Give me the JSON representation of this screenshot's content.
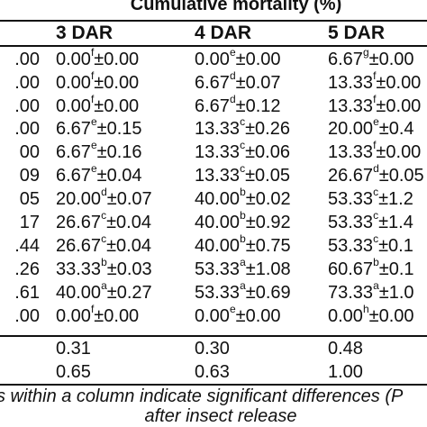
{
  "table": {
    "title": "Cumulative mortality (%)",
    "columns": [
      "3 DAR",
      "4 DAR",
      "5 DAR"
    ],
    "first_column_partial": [
      ".00",
      ".00",
      ".00",
      ".00",
      "00",
      "09",
      "05",
      "17",
      ".44",
      ".26",
      ".61",
      ".00",
      "",
      ""
    ],
    "rows": [
      [
        {
          "v": "0.00",
          "s": "f",
          "e": "±0.00"
        },
        {
          "v": "0.00",
          "s": "e",
          "e": "±0.00"
        },
        {
          "v": "6.67",
          "s": "g",
          "e": "±0.00"
        }
      ],
      [
        {
          "v": "0.00",
          "s": "f",
          "e": "±0.00"
        },
        {
          "v": "6.67",
          "s": "d",
          "e": "±0.07"
        },
        {
          "v": "13.33",
          "s": "f",
          "e": "±0.00"
        }
      ],
      [
        {
          "v": "0.00",
          "s": "f",
          "e": "±0.00"
        },
        {
          "v": "6.67",
          "s": "d",
          "e": "±0.12"
        },
        {
          "v": "13.33",
          "s": "f",
          "e": "±0.00"
        }
      ],
      [
        {
          "v": "6.67",
          "s": "e",
          "e": "±0.15"
        },
        {
          "v": "13.33",
          "s": "c",
          "e": "±0.26"
        },
        {
          "v": "20.00",
          "s": "e",
          "e": "±0.4"
        }
      ],
      [
        {
          "v": "6.67",
          "s": "e",
          "e": "±0.16"
        },
        {
          "v": "13.33",
          "s": "c",
          "e": "±0.06"
        },
        {
          "v": "13.33",
          "s": "f",
          "e": "±0.00"
        }
      ],
      [
        {
          "v": "6.67",
          "s": "e",
          "e": "±0.04"
        },
        {
          "v": "13.33",
          "s": "c",
          "e": "±0.05"
        },
        {
          "v": "26.67",
          "s": "d",
          "e": "±0.05"
        }
      ],
      [
        {
          "v": "20.00",
          "s": "d",
          "e": "±0.07"
        },
        {
          "v": "40.00",
          "s": "b",
          "e": "±0.02"
        },
        {
          "v": "53.33",
          "s": "c",
          "e": "±1.2"
        }
      ],
      [
        {
          "v": "26.67",
          "s": "c",
          "e": "±0.04"
        },
        {
          "v": "40.00",
          "s": "b",
          "e": "±0.92"
        },
        {
          "v": "53.33",
          "s": "c",
          "e": "±1.4"
        }
      ],
      [
        {
          "v": "26.67",
          "s": "c",
          "e": "±0.04"
        },
        {
          "v": "40.00",
          "s": "b",
          "e": "±0.75"
        },
        {
          "v": "53.33",
          "s": "c",
          "e": "±0.1"
        }
      ],
      [
        {
          "v": "33.33",
          "s": "b",
          "e": "±0.03"
        },
        {
          "v": "53.33",
          "s": "a",
          "e": "±1.08"
        },
        {
          "v": "60.67",
          "s": "b",
          "e": "±0.1"
        }
      ],
      [
        {
          "v": "40.00",
          "s": "a",
          "e": "±0.27"
        },
        {
          "v": "53.33",
          "s": "a",
          "e": "±0.69"
        },
        {
          "v": "73.33",
          "s": "a",
          "e": "±1.0"
        }
      ],
      [
        {
          "v": "0.00",
          "s": "f",
          "e": "±0.00"
        },
        {
          "v": "0.00",
          "s": "e",
          "e": "±0.00"
        },
        {
          "v": "0.00",
          "s": "h",
          "e": "±0.00"
        }
      ],
      [
        {
          "v": "0.31",
          "s": "",
          "e": ""
        },
        {
          "v": "0.30",
          "s": "",
          "e": ""
        },
        {
          "v": "0.48",
          "s": "",
          "e": ""
        }
      ],
      [
        {
          "v": "0.65",
          "s": "",
          "e": ""
        },
        {
          "v": "0.63",
          "s": "",
          "e": ""
        },
        {
          "v": "1.00",
          "s": "",
          "e": ""
        }
      ]
    ],
    "footnote_line1": "s within a column indicate significant differences (P",
    "footnote_line2": "after insect release"
  }
}
